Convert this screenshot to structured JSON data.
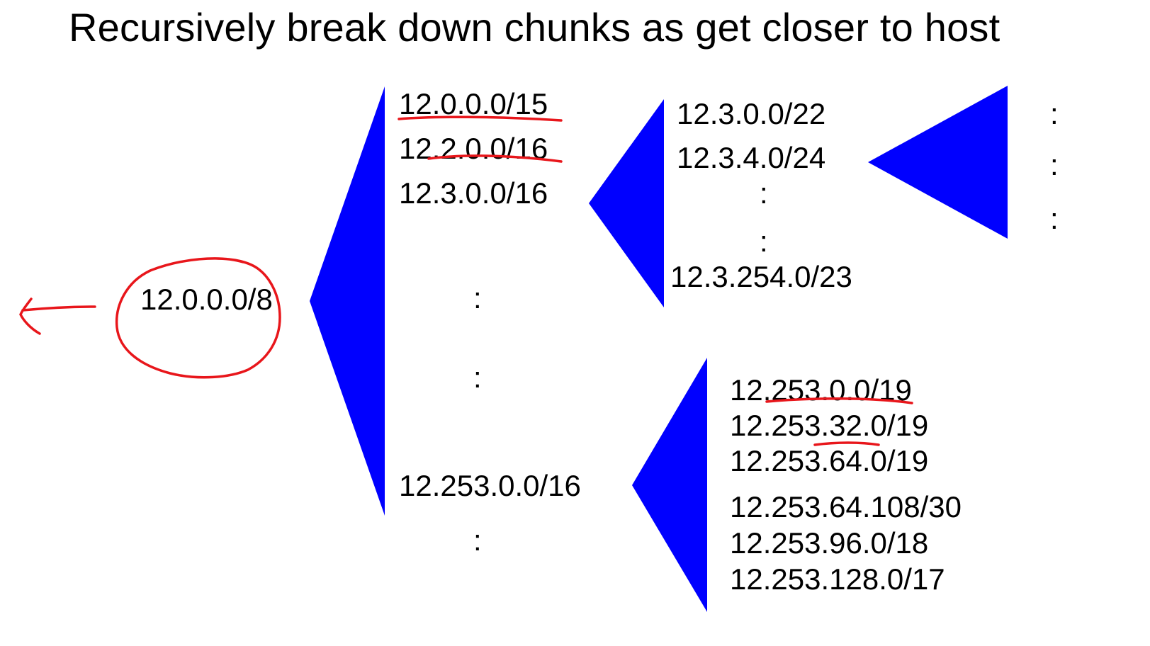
{
  "title": "Recursively break down chunks as get closer to host",
  "colors": {
    "fan": "#0000ff",
    "annotation": "#e8161b",
    "text": "#000000"
  },
  "hierarchy": {
    "root": "12.0.0.0/8",
    "level1": {
      "top": [
        "12.0.0.0/15",
        "12.2.0.0/16",
        "12.3.0.0/16"
      ],
      "bottom": [
        "12.253.0.0/16"
      ]
    },
    "level2_from_12_3": {
      "top": [
        "12.3.0.0/22",
        "12.3.4.0/24"
      ],
      "bottom": [
        "12.3.254.0/23"
      ]
    },
    "level2_from_12_253": [
      "12.253.0.0/19",
      "12.253.32.0/19",
      "12.253.64.0/19",
      "12.253.64.108/30",
      "12.253.96.0/18",
      "12.253.128.0/17"
    ]
  },
  "ellipsis_glyph": ":",
  "annotations": [
    "circle-around-root",
    "left-arrow",
    "underline-12.0.0.0/15",
    "underline-12.2.0.0/16",
    "underline-12.253.0.0/19",
    "underline-12.253.32.0/19"
  ]
}
